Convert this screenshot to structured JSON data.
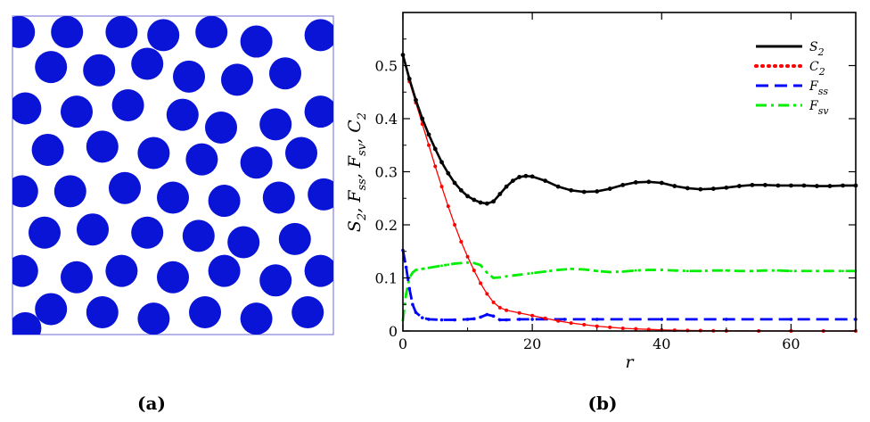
{
  "colors": {
    "particle": "#0a14d6",
    "s2": "#000000",
    "c2": "#ff0000",
    "fss": "#0000ff",
    "fsv": "#00ee00",
    "frame": "#000000"
  },
  "panels": {
    "a": {
      "label": "(a)"
    },
    "b": {
      "label": "(b)"
    }
  },
  "microstructure": {
    "domain": [
      0,
      100
    ],
    "particle_radius": 5,
    "particles": [
      [
        2,
        5
      ],
      [
        17,
        5
      ],
      [
        34,
        5
      ],
      [
        47,
        6
      ],
      [
        62,
        5
      ],
      [
        76,
        8
      ],
      [
        96,
        6
      ],
      [
        12,
        16
      ],
      [
        27,
        17
      ],
      [
        42,
        15
      ],
      [
        55,
        19
      ],
      [
        70,
        20
      ],
      [
        85,
        18
      ],
      [
        4,
        29
      ],
      [
        20,
        30
      ],
      [
        36,
        28
      ],
      [
        53,
        31
      ],
      [
        65,
        35
      ],
      [
        82,
        34
      ],
      [
        96,
        30
      ],
      [
        11,
        42
      ],
      [
        28,
        41
      ],
      [
        44,
        43
      ],
      [
        59,
        45
      ],
      [
        76,
        46
      ],
      [
        90,
        43
      ],
      [
        3,
        55
      ],
      [
        18,
        55
      ],
      [
        35,
        54
      ],
      [
        50,
        57
      ],
      [
        66,
        58
      ],
      [
        83,
        57
      ],
      [
        97,
        56
      ],
      [
        10,
        68
      ],
      [
        25,
        67
      ],
      [
        42,
        68
      ],
      [
        58,
        69
      ],
      [
        72,
        71
      ],
      [
        88,
        70
      ],
      [
        3,
        80
      ],
      [
        20,
        82
      ],
      [
        34,
        80
      ],
      [
        50,
        82
      ],
      [
        66,
        80
      ],
      [
        82,
        83
      ],
      [
        96,
        80
      ],
      [
        12,
        92
      ],
      [
        28,
        93
      ],
      [
        44,
        95
      ],
      [
        60,
        93
      ],
      [
        76,
        95
      ],
      [
        92,
        93
      ],
      [
        4,
        98
      ]
    ]
  },
  "chart_data": {
    "type": "line",
    "title": "",
    "xlabel": "r",
    "ylabel": "S2, Fss, Fsv, C2",
    "xlim": [
      0,
      70
    ],
    "ylim": [
      0,
      0.6
    ],
    "xticks": [
      0,
      20,
      40,
      60
    ],
    "yticks": [
      0,
      0.1,
      0.2,
      0.3,
      0.4,
      0.5
    ],
    "legend_position": "top-right",
    "series": [
      {
        "name": "S2",
        "label_main": "S",
        "label_sub": "2",
        "style": "solid",
        "x": [
          0,
          1,
          2,
          3,
          4,
          5,
          6,
          7,
          8,
          9,
          10,
          11,
          12,
          13,
          14,
          15,
          16,
          17,
          18,
          19,
          20,
          22,
          24,
          26,
          28,
          30,
          32,
          34,
          36,
          38,
          40,
          42,
          44,
          46,
          48,
          50,
          52,
          54,
          56,
          58,
          60,
          62,
          64,
          66,
          68,
          70
        ],
        "values": [
          0.52,
          0.475,
          0.435,
          0.4,
          0.37,
          0.343,
          0.318,
          0.297,
          0.279,
          0.265,
          0.254,
          0.247,
          0.242,
          0.24,
          0.244,
          0.258,
          0.272,
          0.283,
          0.29,
          0.292,
          0.291,
          0.283,
          0.272,
          0.265,
          0.262,
          0.263,
          0.268,
          0.275,
          0.28,
          0.281,
          0.279,
          0.273,
          0.269,
          0.267,
          0.268,
          0.27,
          0.273,
          0.275,
          0.275,
          0.274,
          0.274,
          0.274,
          0.273,
          0.273,
          0.274,
          0.274
        ]
      },
      {
        "name": "C2",
        "label_main": "C",
        "label_sub": "2",
        "style": "dotted",
        "x": [
          0,
          1,
          2,
          3,
          4,
          5,
          6,
          7,
          8,
          9,
          10,
          11,
          12,
          13,
          14,
          15,
          16,
          18,
          20,
          22,
          24,
          26,
          28,
          30,
          32,
          34,
          36,
          38,
          40,
          42,
          44,
          46,
          48,
          50,
          55,
          60,
          65,
          70
        ],
        "values": [
          0.52,
          0.47,
          0.43,
          0.39,
          0.35,
          0.31,
          0.272,
          0.235,
          0.2,
          0.168,
          0.14,
          0.114,
          0.09,
          0.07,
          0.054,
          0.044,
          0.039,
          0.034,
          0.029,
          0.024,
          0.019,
          0.015,
          0.012,
          0.009,
          0.007,
          0.005,
          0.004,
          0.003,
          0.002,
          0.0015,
          0.001,
          0.0008,
          0.0005,
          0.0003,
          0.0001,
          0.0,
          0.0,
          0.0
        ]
      },
      {
        "name": "Fss",
        "label_main": "F",
        "label_sub": "ss",
        "style": "dashed",
        "x": [
          0,
          0.5,
          1,
          1.5,
          2,
          3,
          4,
          6,
          8,
          10,
          11,
          12,
          13,
          14,
          15,
          16,
          18,
          20,
          25,
          30,
          40,
          50,
          60,
          70
        ],
        "values": [
          0.152,
          0.12,
          0.08,
          0.05,
          0.035,
          0.025,
          0.022,
          0.021,
          0.021,
          0.022,
          0.023,
          0.026,
          0.031,
          0.028,
          0.021,
          0.021,
          0.022,
          0.022,
          0.022,
          0.022,
          0.022,
          0.022,
          0.022,
          0.022
        ]
      },
      {
        "name": "Fsv",
        "label_main": "F",
        "label_sub": "sv",
        "style": "dashdot",
        "x": [
          0,
          0.5,
          1,
          1.5,
          2,
          3,
          4,
          5,
          6,
          7,
          8,
          9,
          10,
          11,
          12,
          13,
          14,
          15,
          16,
          18,
          20,
          22,
          24,
          26,
          28,
          30,
          32,
          34,
          36,
          38,
          40,
          42,
          44,
          46,
          48,
          50,
          52,
          54,
          56,
          58,
          60,
          62,
          64,
          66,
          68,
          70
        ],
        "values": [
          0.02,
          0.07,
          0.1,
          0.11,
          0.115,
          0.117,
          0.119,
          0.121,
          0.123,
          0.125,
          0.127,
          0.128,
          0.129,
          0.128,
          0.124,
          0.11,
          0.1,
          0.101,
          0.103,
          0.106,
          0.109,
          0.112,
          0.115,
          0.117,
          0.116,
          0.113,
          0.111,
          0.112,
          0.114,
          0.115,
          0.115,
          0.114,
          0.113,
          0.113,
          0.114,
          0.114,
          0.113,
          0.113,
          0.114,
          0.114,
          0.113,
          0.113,
          0.113,
          0.113,
          0.113,
          0.113
        ]
      }
    ]
  }
}
